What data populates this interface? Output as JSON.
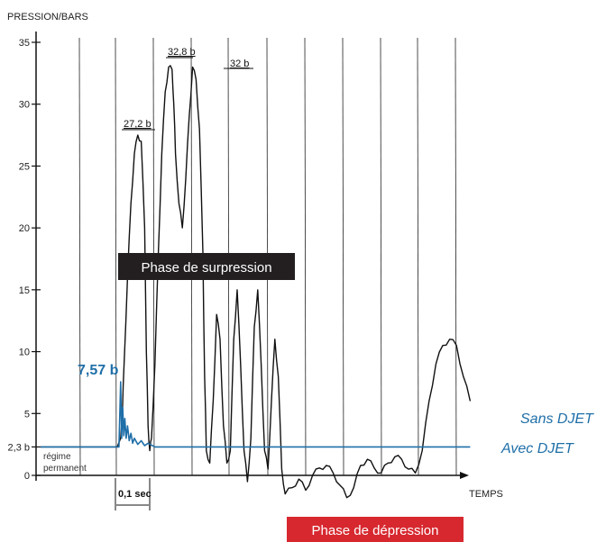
{
  "chart_data": {
    "type": "line",
    "ylabel": "PRESSION/BARS",
    "xlabel": "TEMPS",
    "ylim": [
      0,
      36
    ],
    "y_ticks": [
      {
        "value": 0,
        "label": "0"
      },
      {
        "value": 2.3,
        "label": "2,3 b"
      },
      {
        "value": 5,
        "label": "5"
      },
      {
        "value": 10,
        "label": "10"
      },
      {
        "value": 15,
        "label": "15"
      },
      {
        "value": 20,
        "label": "20"
      },
      {
        "value": 25,
        "label": "25"
      },
      {
        "value": 30,
        "label": "30"
      },
      {
        "value": 35,
        "label": "35"
      }
    ],
    "time_scale_label": "0,1 sec",
    "steady_state_label_line1": "régime",
    "steady_state_label_line2": "permanent",
    "peak_labels": [
      {
        "label": "27,2 b",
        "value": 27.2
      },
      {
        "label": "32,8 b",
        "value": 32.8
      },
      {
        "label": "32 b",
        "value": 32
      }
    ],
    "overpressure_phase_label": "Phase de surpression",
    "depression_phase_label": "Phase de dépression",
    "series": [
      {
        "name": "Sans DJET",
        "color": "#111111",
        "x": [
          0,
          0.09,
          0.1,
          0.105,
          0.11,
          0.12,
          0.13,
          0.14,
          0.15,
          0.16,
          0.17,
          0.175,
          0.18,
          0.185,
          0.19,
          0.2,
          0.21,
          0.22,
          0.23,
          0.24,
          0.25,
          0.255,
          0.26,
          0.27,
          0.28,
          0.29,
          0.3,
          0.31,
          0.32,
          0.33,
          0.34,
          0.345,
          0.35,
          0.36,
          0.37,
          0.38,
          0.39,
          0.4,
          0.41,
          0.42,
          0.43,
          0.44,
          0.45,
          0.46,
          0.47,
          0.48,
          0.49,
          0.5,
          0.51,
          0.52,
          0.53,
          0.54,
          0.55,
          0.56,
          0.57,
          0.58,
          0.6,
          0.62,
          0.64,
          0.66,
          0.68,
          0.7,
          0.72,
          0.74,
          0.76,
          0.78,
          0.8,
          0.82,
          0.84,
          0.86,
          0.88,
          0.9,
          0.92,
          0.94,
          0.96,
          0.98,
          1.0,
          1.02,
          1.04,
          1.06,
          1.08,
          1.1,
          1.12
        ],
        "values": [
          2.3,
          2.3,
          3.0,
          5.0,
          9.0,
          16.0,
          22.0,
          26.0,
          27.5,
          27.0,
          20.0,
          10.0,
          4.0,
          2.0,
          3.0,
          9.0,
          18.0,
          26.0,
          31.0,
          33.0,
          32.8,
          30.0,
          26.0,
          22.0,
          20.0,
          24.0,
          29.0,
          33.0,
          32.0,
          28.0,
          18.0,
          8.0,
          2.0,
          1.0,
          6.0,
          13.0,
          11.0,
          4.0,
          1.0,
          2.0,
          11.0,
          15.0,
          9.0,
          2.0,
          -0.5,
          3.0,
          12.0,
          15.0,
          9.0,
          2.0,
          0.5,
          6.0,
          11.0,
          8.0,
          0.5,
          -1.5,
          -1.0,
          -0.3,
          -1.2,
          0.0,
          0.6,
          0.8,
          0.2,
          -0.8,
          -1.8,
          -1.0,
          0.8,
          1.3,
          0.6,
          0.2,
          1.0,
          1.5,
          1.3,
          0.5,
          0.2,
          2.0,
          6.0,
          9.0,
          10.5,
          11.0,
          10.5,
          8.0,
          6.0
        ]
      },
      {
        "name": "Avec DJET",
        "color": "#1f6fa8",
        "x": [
          0,
          0.09,
          0.095,
          0.1,
          0.103,
          0.106,
          0.109,
          0.112,
          0.116,
          0.12,
          0.125,
          0.13,
          0.135,
          0.14,
          0.15,
          0.16,
          0.17,
          0.18,
          0.2,
          0.4,
          0.6,
          0.8,
          1.0,
          1.12
        ],
        "values": [
          2.3,
          2.3,
          2.3,
          7.57,
          3.0,
          5.5,
          3.2,
          4.6,
          3.0,
          4.0,
          2.8,
          3.4,
          2.6,
          3.0,
          2.5,
          2.8,
          2.4,
          2.6,
          2.3,
          2.3,
          2.3,
          2.3,
          2.3,
          2.3
        ]
      }
    ],
    "highlight_value": {
      "label": "7,57 b",
      "value": 7.57
    }
  }
}
